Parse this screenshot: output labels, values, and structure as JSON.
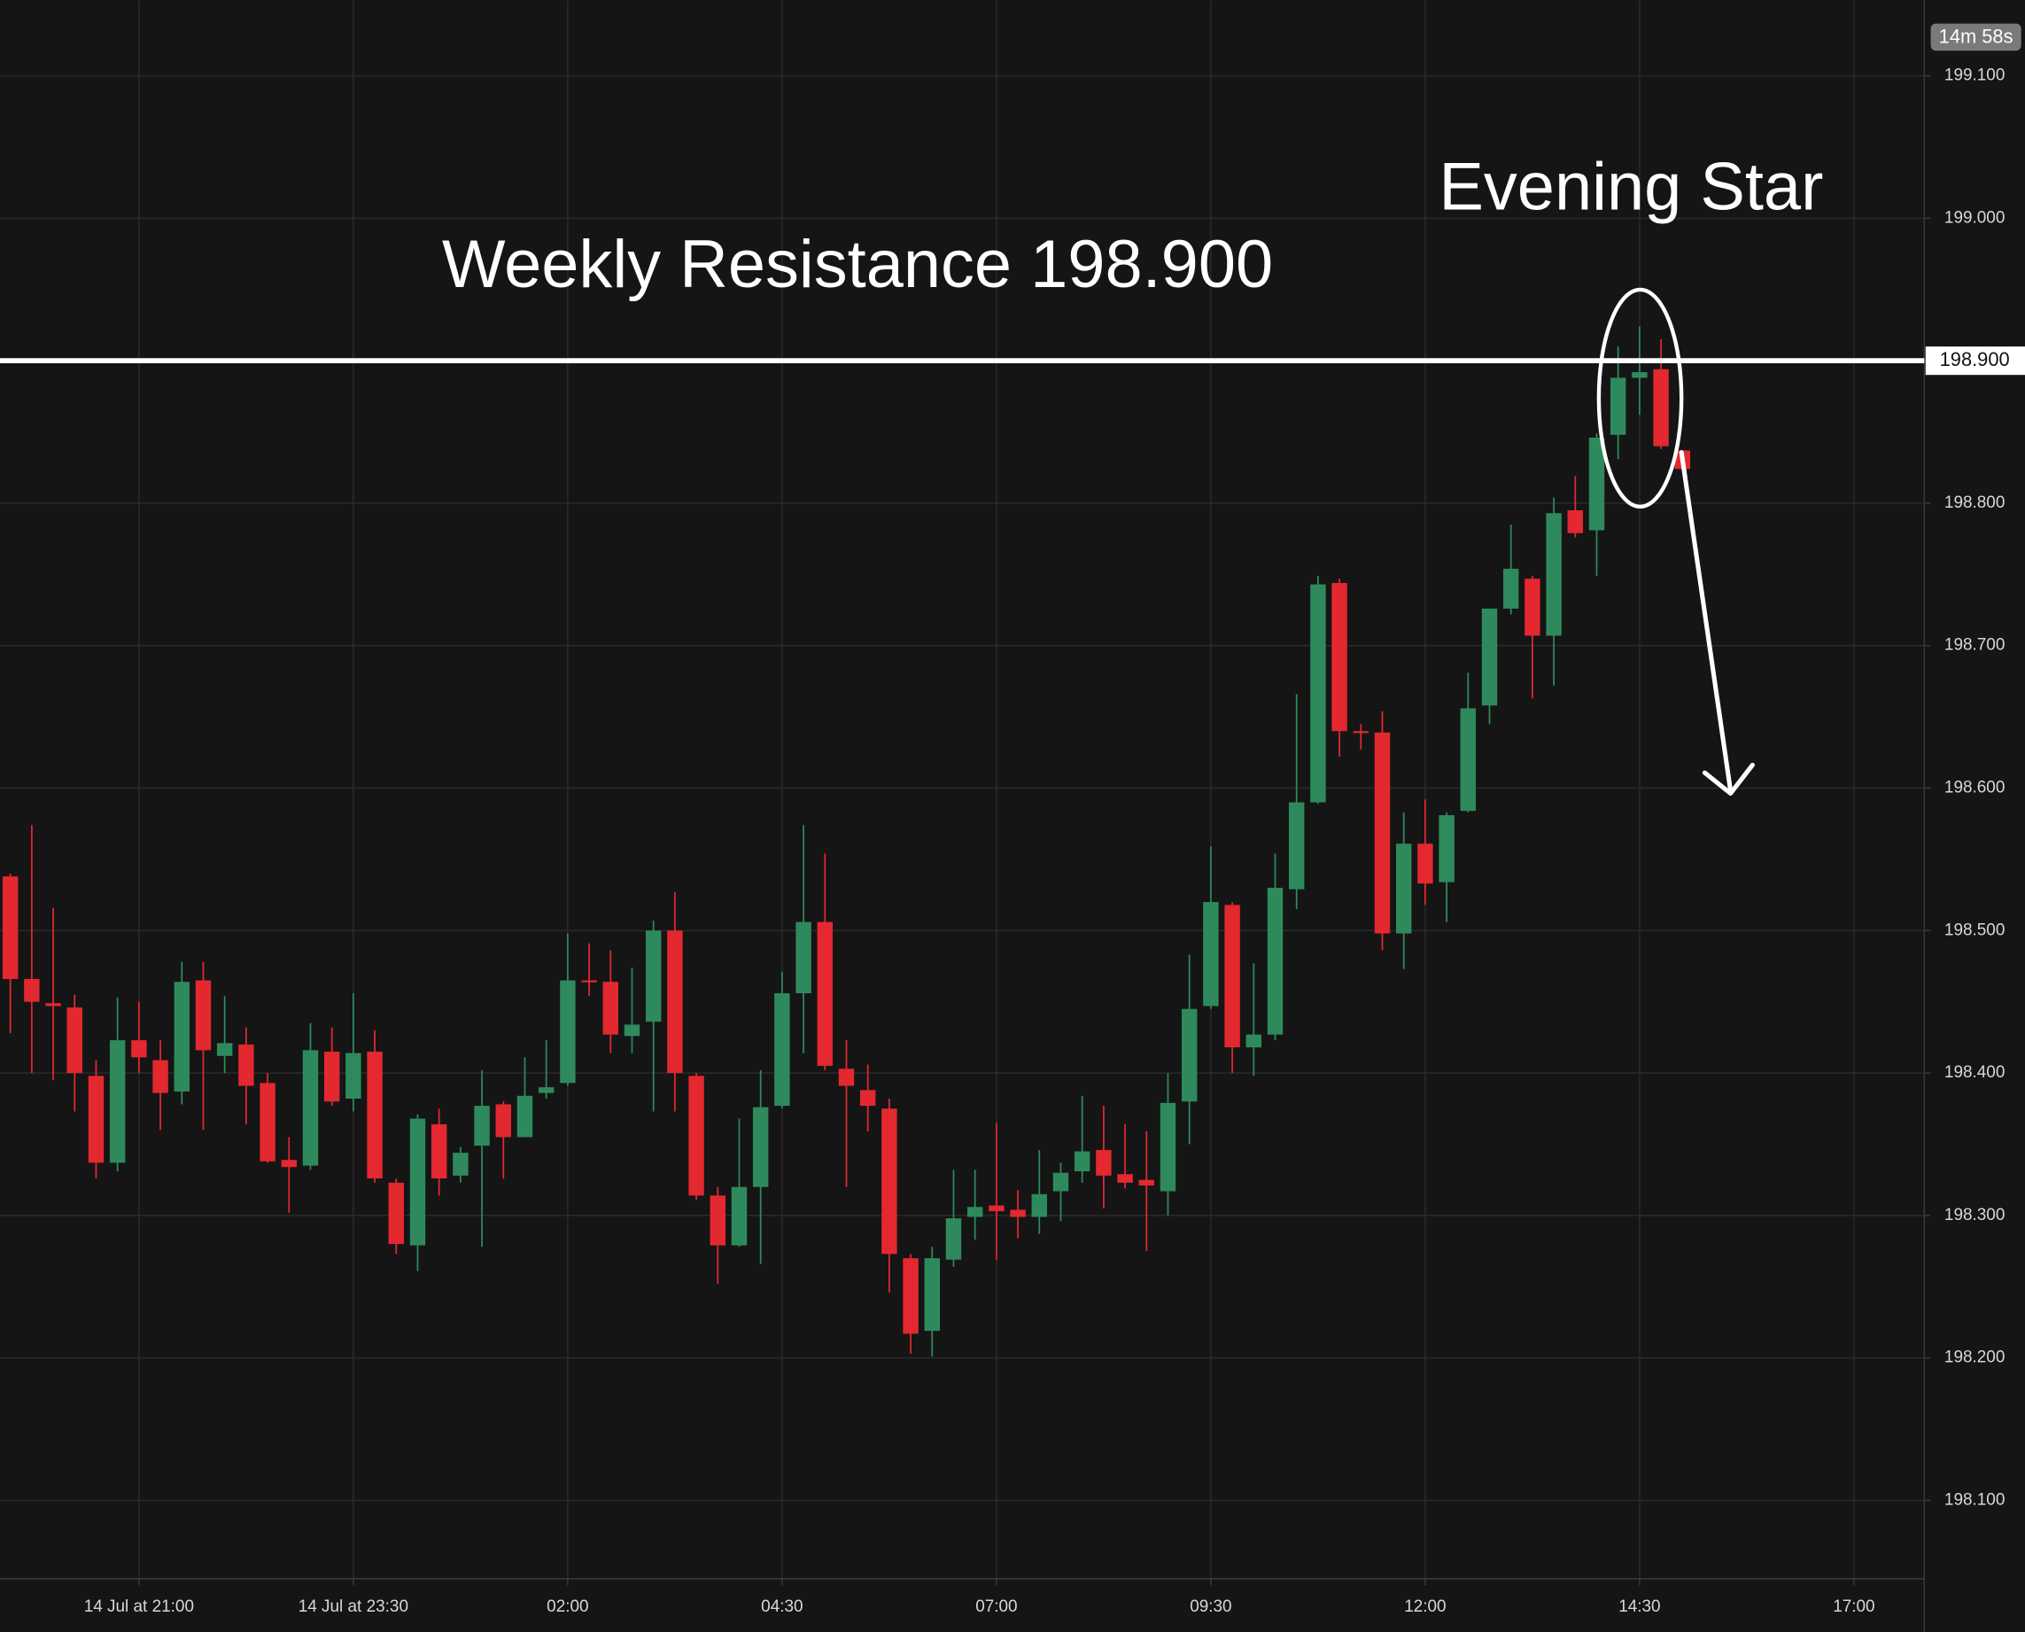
{
  "chart_data": {
    "type": "candlestick",
    "up_color": "#2e8a5c",
    "down_color": "#e3282f",
    "grid": true,
    "timer": "14m 58s",
    "annotations": [
      {
        "text": "Weekly Resistance 198.900"
      },
      {
        "text": "Evening Star"
      }
    ],
    "resistance": {
      "value": 198.9,
      "label": "198.900"
    },
    "xlim": [
      -0.482,
      89.28
    ],
    "ylim": [
      198.045,
      199.153
    ],
    "xticks": [
      {
        "value": 6,
        "label": "14 Jul at 21:00"
      },
      {
        "value": 16,
        "label": "14 Jul at 23:30"
      },
      {
        "value": 26,
        "label": "02:00"
      },
      {
        "value": 36,
        "label": "04:30"
      },
      {
        "value": 46,
        "label": "07:00"
      },
      {
        "value": 56,
        "label": "09:30"
      },
      {
        "value": 66,
        "label": "12:00"
      },
      {
        "value": 76,
        "label": "14:30"
      },
      {
        "value": 86,
        "label": "17:00"
      }
    ],
    "yticks": [
      {
        "value": 198.1,
        "label": "198.100"
      },
      {
        "value": 198.2,
        "label": "198.200"
      },
      {
        "value": 198.3,
        "label": "198.300"
      },
      {
        "value": 198.4,
        "label": "198.400"
      },
      {
        "value": 198.5,
        "label": "198.500"
      },
      {
        "value": 198.6,
        "label": "198.600"
      },
      {
        "value": 198.7,
        "label": "198.700"
      },
      {
        "value": 198.8,
        "label": "198.800"
      },
      {
        "value": 198.9,
        "label": "198.900"
      },
      {
        "value": 199.0,
        "label": "199.000"
      },
      {
        "value": 199.1,
        "label": "199.100"
      }
    ],
    "x": [
      0,
      1,
      2,
      3,
      4,
      5,
      6,
      7,
      8,
      9,
      10,
      11,
      12,
      13,
      14,
      15,
      16,
      17,
      18,
      19,
      20,
      21,
      22,
      23,
      24,
      25,
      26,
      27,
      28,
      29,
      30,
      31,
      32,
      33,
      34,
      35,
      36,
      37,
      38,
      39,
      40,
      41,
      42,
      43,
      44,
      45,
      46,
      47,
      48,
      49,
      50,
      51,
      52,
      53,
      54,
      55,
      56,
      57,
      58,
      59,
      60,
      61,
      62,
      63,
      64,
      65,
      66,
      67,
      68,
      69,
      70,
      71,
      72,
      73,
      74,
      75,
      76,
      77,
      78
    ],
    "open": [
      198.538,
      198.466,
      198.449,
      198.446,
      198.398,
      198.337,
      198.423,
      198.409,
      198.387,
      198.465,
      198.412,
      198.42,
      198.393,
      198.339,
      198.335,
      198.415,
      198.382,
      198.415,
      198.323,
      198.279,
      198.364,
      198.328,
      198.349,
      198.378,
      198.355,
      198.386,
      198.393,
      198.465,
      198.464,
      198.426,
      198.436,
      198.5,
      198.398,
      198.314,
      198.279,
      198.32,
      198.377,
      198.456,
      198.506,
      198.403,
      198.388,
      198.375,
      198.27,
      198.219,
      198.269,
      198.299,
      198.307,
      198.304,
      198.299,
      198.317,
      198.331,
      198.346,
      198.329,
      198.325,
      198.317,
      198.38,
      198.447,
      198.518,
      198.418,
      198.427,
      198.529,
      198.59,
      198.744,
      198.64,
      198.639,
      198.498,
      198.561,
      198.534,
      198.584,
      198.658,
      198.726,
      198.747,
      198.707,
      198.795,
      198.781,
      198.848,
      198.888,
      198.894,
      198.837
    ],
    "high": [
      198.54,
      198.574,
      198.516,
      198.455,
      198.409,
      198.453,
      198.45,
      198.423,
      198.478,
      198.478,
      198.454,
      198.432,
      198.4,
      198.355,
      198.435,
      198.432,
      198.456,
      198.43,
      198.326,
      198.371,
      198.375,
      198.348,
      198.402,
      198.38,
      198.411,
      198.423,
      198.498,
      198.491,
      198.486,
      198.474,
      198.507,
      198.527,
      198.4,
      198.32,
      198.368,
      198.402,
      198.471,
      198.574,
      198.554,
      198.423,
      198.406,
      198.382,
      198.273,
      198.278,
      198.332,
      198.332,
      198.365,
      198.318,
      198.346,
      198.337,
      198.384,
      198.377,
      198.364,
      198.359,
      198.4,
      198.483,
      198.559,
      198.52,
      198.477,
      198.554,
      198.666,
      198.749,
      198.747,
      198.645,
      198.654,
      198.583,
      198.592,
      198.583,
      198.681,
      198.726,
      198.785,
      198.749,
      198.804,
      198.819,
      198.849,
      198.91,
      198.924,
      198.915,
      198.837
    ],
    "low": [
      198.428,
      198.4,
      198.395,
      198.373,
      198.326,
      198.331,
      198.4,
      198.36,
      198.378,
      198.36,
      198.4,
      198.364,
      198.337,
      198.302,
      198.332,
      198.377,
      198.373,
      198.323,
      198.273,
      198.261,
      198.314,
      198.323,
      198.278,
      198.326,
      198.355,
      198.382,
      198.391,
      198.454,
      198.414,
      198.414,
      198.373,
      198.373,
      198.311,
      198.252,
      198.278,
      198.266,
      198.375,
      198.414,
      198.402,
      198.32,
      198.359,
      198.246,
      198.203,
      198.201,
      198.264,
      198.283,
      198.269,
      198.284,
      198.287,
      198.296,
      198.323,
      198.305,
      198.319,
      198.275,
      198.3,
      198.35,
      198.445,
      198.4,
      198.398,
      198.423,
      198.515,
      198.589,
      198.622,
      198.627,
      198.486,
      198.473,
      198.518,
      198.506,
      198.583,
      198.645,
      198.722,
      198.663,
      198.672,
      198.776,
      198.749,
      198.831,
      198.862,
      198.838,
      198.824
    ],
    "close": [
      198.466,
      198.45,
      198.447,
      198.4,
      198.337,
      198.423,
      198.411,
      198.386,
      198.464,
      198.416,
      198.421,
      198.391,
      198.338,
      198.334,
      198.416,
      198.38,
      198.414,
      198.326,
      198.28,
      198.368,
      198.326,
      198.344,
      198.377,
      198.355,
      198.384,
      198.39,
      198.465,
      198.464,
      198.427,
      198.434,
      198.5,
      198.4,
      198.314,
      198.279,
      198.32,
      198.376,
      198.456,
      198.506,
      198.405,
      198.391,
      198.377,
      198.273,
      198.217,
      198.27,
      198.298,
      198.306,
      198.303,
      198.299,
      198.315,
      198.33,
      198.345,
      198.328,
      198.323,
      198.321,
      198.379,
      198.445,
      198.52,
      198.418,
      198.427,
      198.53,
      198.59,
      198.743,
      198.64,
      198.639,
      198.498,
      198.561,
      198.533,
      198.581,
      198.656,
      198.726,
      198.754,
      198.707,
      198.793,
      198.779,
      198.846,
      198.888,
      198.892,
      198.84,
      198.824
    ]
  }
}
